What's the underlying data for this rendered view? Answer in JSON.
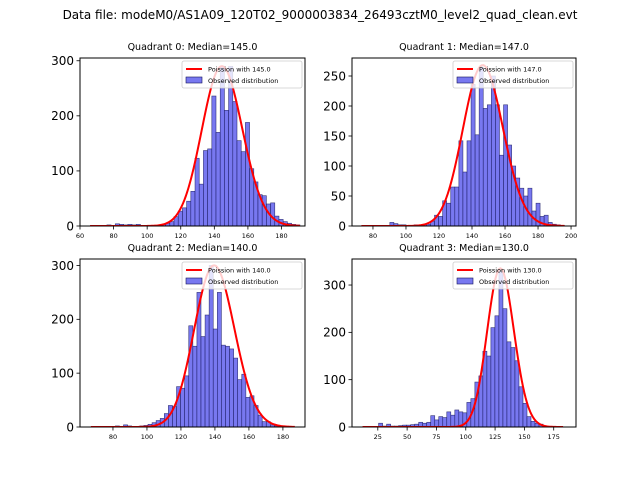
{
  "figure": {
    "suptitle": "Data file: modeM0/AS1A09_120T02_9000003834_26493cztM0_level2_quad_clean.evt"
  },
  "colors": {
    "bar_fill": "#7878f0",
    "bar_edge": "#14145a",
    "poisson_line": "#ff0000",
    "axes": "#000000"
  },
  "chart_data": [
    {
      "type": "bar",
      "title": "Quadrant 0: Median=145.0",
      "xlabel": "",
      "ylabel": "",
      "xlim": [
        60,
        194
      ],
      "ylim": [
        0,
        305
      ],
      "xticks": [
        60,
        80,
        100,
        120,
        140,
        160,
        180
      ],
      "yticks": [
        0,
        100,
        200,
        300
      ],
      "legend": {
        "position": "top-right",
        "entries": [
          "Poission with 145.0",
          "Observed distribution"
        ]
      },
      "histogram": {
        "bin_start": 66.0,
        "bin_width": 2.5,
        "counts": [
          0,
          0,
          0,
          0,
          2,
          0,
          4,
          3,
          2,
          3,
          2,
          3,
          0,
          1,
          1,
          1,
          2,
          3,
          5,
          8,
          17,
          27,
          33,
          45,
          63,
          123,
          76,
          137,
          140,
          236,
          170,
          290,
          210,
          290,
          226,
          155,
          135,
          188,
          104,
          80,
          57,
          55,
          40,
          42,
          18,
          12,
          8,
          5,
          3,
          2
        ]
      },
      "poisson": {
        "mean": 145.0,
        "scale": 290,
        "x_range": [
          66,
          191
        ]
      }
    },
    {
      "type": "bar",
      "title": "Quadrant 1: Median=147.0",
      "xlabel": "",
      "ylabel": "",
      "xlim": [
        67.3,
        203
      ],
      "ylim": [
        0,
        280
      ],
      "xticks": [
        80,
        100,
        120,
        140,
        160,
        180,
        200
      ],
      "yticks": [
        0,
        50,
        100,
        150,
        200,
        250
      ],
      "legend": {
        "position": "top-right",
        "entries": [
          "Poission with 147.0",
          "Observed distribution"
        ]
      },
      "histogram": {
        "bin_start": 73.0,
        "bin_width": 2.46,
        "counts": [
          0,
          0,
          0,
          0,
          0,
          0,
          0,
          6,
          4,
          2,
          2,
          1,
          1,
          2,
          1,
          2,
          3,
          8,
          18,
          16,
          42,
          38,
          65,
          65,
          142,
          90,
          142,
          236,
          152,
          265,
          196,
          202,
          250,
          202,
          118,
          202,
          135,
          100,
          80,
          63,
          50,
          63,
          25,
          38,
          16,
          18,
          6,
          3,
          2,
          1
        ]
      },
      "poisson": {
        "mean": 147.0,
        "scale": 268,
        "x_range": [
          73,
          196
        ]
      }
    },
    {
      "type": "bar",
      "title": "Quadrant 2: Median=140.0",
      "xlabel": "",
      "ylabel": "",
      "xlim": [
        60.6,
        193
      ],
      "ylim": [
        0,
        312
      ],
      "xticks": [
        80,
        100,
        120,
        140,
        160,
        180
      ],
      "yticks": [
        0,
        100,
        200,
        300
      ],
      "legend": {
        "position": "top-right",
        "entries": [
          "Poission with 140.0",
          "Observed distribution"
        ]
      },
      "histogram": {
        "bin_start": 67.0,
        "bin_width": 2.4,
        "counts": [
          0,
          0,
          0,
          0,
          0,
          0,
          2,
          0,
          4,
          2,
          1,
          1,
          2,
          3,
          5,
          8,
          12,
          16,
          25,
          40,
          38,
          75,
          72,
          95,
          188,
          150,
          250,
          168,
          208,
          300,
          182,
          250,
          152,
          150,
          145,
          128,
          88,
          98,
          55,
          58,
          40,
          22,
          10,
          10,
          4,
          2,
          1,
          0,
          0,
          0
        ]
      },
      "poisson": {
        "mean": 140.0,
        "scale": 300,
        "x_range": [
          67,
          187
        ]
      }
    },
    {
      "type": "bar",
      "title": "Quadrant 3: Median=130.0",
      "xlabel": "",
      "ylabel": "",
      "xlim": [
        3,
        194
      ],
      "ylim": [
        0,
        355
      ],
      "xticks": [
        25,
        50,
        75,
        100,
        125,
        150,
        175
      ],
      "yticks": [
        0,
        100,
        200,
        300
      ],
      "legend": {
        "position": "top-right",
        "entries": [
          "Poission with 130.0",
          "Observed distribution"
        ]
      },
      "histogram": {
        "bin_start": 12.0,
        "bin_width": 3.42,
        "counts": [
          0,
          0,
          0,
          0,
          8,
          2,
          6,
          2,
          2,
          3,
          4,
          4,
          5,
          6,
          10,
          8,
          10,
          24,
          15,
          22,
          20,
          32,
          25,
          36,
          32,
          30,
          52,
          60,
          95,
          108,
          160,
          150,
          210,
          235,
          330,
          250,
          180,
          168,
          140,
          85,
          50,
          22,
          12,
          8,
          6,
          2,
          1,
          1,
          0,
          0
        ]
      },
      "poisson": {
        "mean": 130.0,
        "scale": 335,
        "x_range": [
          12,
          183
        ]
      }
    }
  ]
}
